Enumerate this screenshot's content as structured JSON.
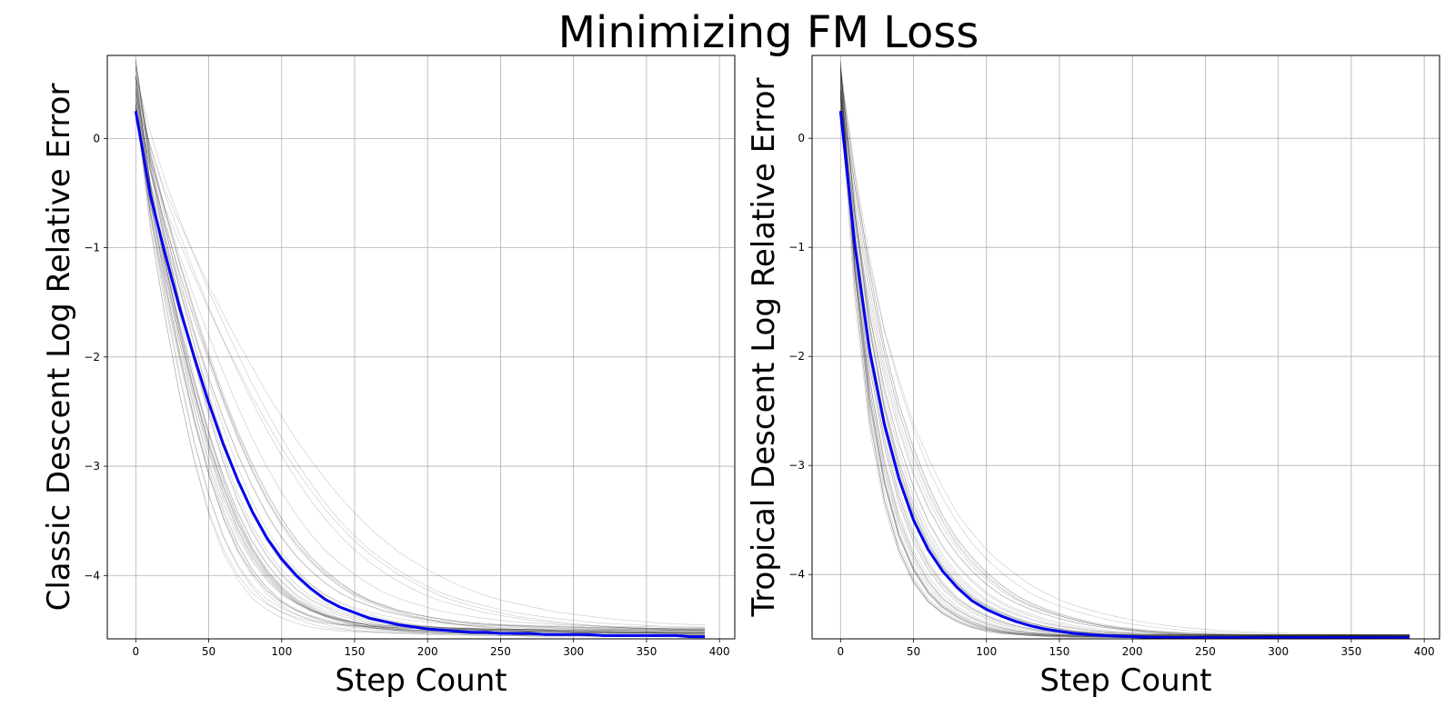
{
  "figure": {
    "title": "Minimizing FM Loss"
  },
  "colors": {
    "mean_line": "#0000ee",
    "run_lines": "#000000",
    "grid": "#b0b0b0"
  },
  "chart_data": [
    {
      "type": "line",
      "title": "",
      "xlabel": "Step Count",
      "ylabel": "Classic Descent Log Relative Error",
      "xlim": [
        -19.5,
        410.5
      ],
      "ylim": [
        -4.58,
        0.76
      ],
      "xticks": [
        0,
        50,
        100,
        150,
        200,
        250,
        300,
        350,
        400
      ],
      "yticks": [
        0,
        -1,
        -2,
        -3,
        -4
      ],
      "ytick_labels": [
        "0",
        "−1",
        "−2",
        "−3",
        "−4"
      ],
      "grid": true,
      "x": [
        0,
        10,
        20,
        30,
        40,
        50,
        60,
        70,
        80,
        90,
        100,
        110,
        120,
        130,
        140,
        150,
        160,
        170,
        180,
        190,
        200,
        210,
        220,
        230,
        240,
        250,
        260,
        270,
        280,
        290,
        300,
        310,
        320,
        330,
        340,
        350,
        360,
        370,
        380,
        390
      ],
      "series": [
        {
          "role": "mean",
          "color": "#0000ee",
          "y": [
            0.25,
            -0.52,
            -1.05,
            -1.55,
            -2.0,
            -2.42,
            -2.8,
            -3.13,
            -3.42,
            -3.66,
            -3.85,
            -4.0,
            -4.12,
            -4.22,
            -4.29,
            -4.34,
            -4.39,
            -4.42,
            -4.45,
            -4.47,
            -4.49,
            -4.5,
            -4.51,
            -4.52,
            -4.52,
            -4.53,
            -4.53,
            -4.53,
            -4.54,
            -4.54,
            -4.54,
            -4.54,
            -4.55,
            -4.55,
            -4.55,
            -4.55,
            -4.55,
            -4.55,
            -4.56,
            -4.56
          ]
        }
      ],
      "runs": {
        "count": 40,
        "color": "#000000",
        "start_range": [
          0.25,
          0.72
        ],
        "final_range": [
          -4.56,
          -4.49
        ]
      }
    },
    {
      "type": "line",
      "title": "",
      "xlabel": "Step Count",
      "ylabel": "Tropical Descent Log Relative Error",
      "xlim": [
        -19.5,
        410.5
      ],
      "ylim": [
        -4.59,
        0.76
      ],
      "xticks": [
        0,
        50,
        100,
        150,
        200,
        250,
        300,
        350,
        400
      ],
      "yticks": [
        0,
        -1,
        -2,
        -3,
        -4
      ],
      "ytick_labels": [
        "0",
        "−1",
        "−2",
        "−3",
        "−4"
      ],
      "grid": true,
      "x": [
        0,
        10,
        20,
        30,
        40,
        50,
        60,
        70,
        80,
        90,
        100,
        110,
        120,
        130,
        140,
        150,
        160,
        170,
        180,
        190,
        200,
        210,
        220,
        230,
        240,
        250,
        260,
        270,
        280,
        290,
        300,
        310,
        320,
        330,
        340,
        350,
        360,
        370,
        380,
        390
      ],
      "series": [
        {
          "role": "mean",
          "color": "#0000ee",
          "y": [
            0.25,
            -1.0,
            -1.95,
            -2.62,
            -3.12,
            -3.5,
            -3.77,
            -3.97,
            -4.12,
            -4.24,
            -4.32,
            -4.38,
            -4.43,
            -4.47,
            -4.5,
            -4.52,
            -4.54,
            -4.55,
            -4.56,
            -4.565,
            -4.57,
            -4.575,
            -4.578,
            -4.58,
            -4.58,
            -4.58,
            -4.58,
            -4.58,
            -4.58,
            -4.58,
            -4.58,
            -4.58,
            -4.58,
            -4.58,
            -4.58,
            -4.58,
            -4.58,
            -4.58,
            -4.58,
            -4.58
          ]
        }
      ],
      "runs": {
        "count": 40,
        "color": "#000000",
        "start_range": [
          0.25,
          0.72
        ],
        "final_range": [
          -4.58,
          -4.55
        ]
      }
    }
  ]
}
